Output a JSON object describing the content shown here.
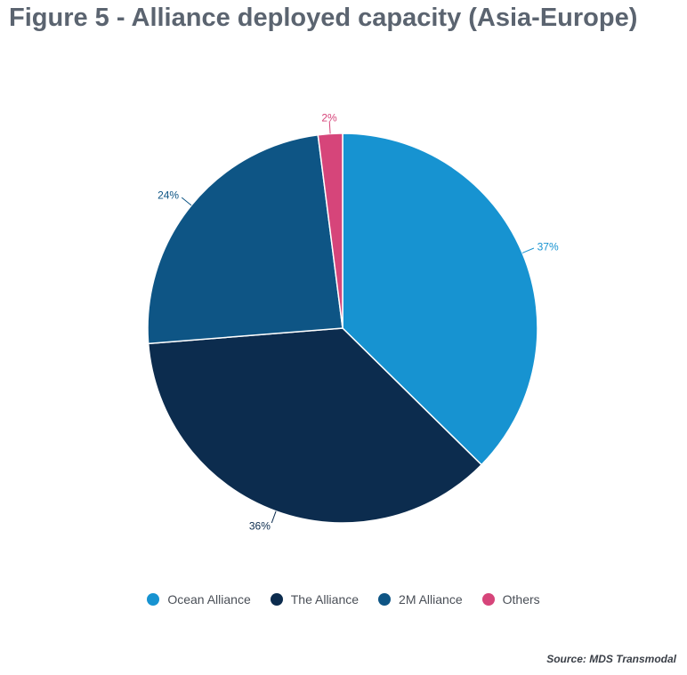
{
  "title": "Figure 5 - Alliance deployed capacity (Asia-Europe)",
  "source": "Source: MDS Transmodal",
  "chart_data": {
    "type": "pie",
    "slices": [
      {
        "name": "Ocean Alliance",
        "value": 37,
        "label": "37%",
        "color": "#1793d1"
      },
      {
        "name": "The Alliance",
        "value": 36,
        "label": "36%",
        "color": "#0c2c4e"
      },
      {
        "name": "2M Alliance",
        "value": 24,
        "label": "24%",
        "color": "#0e5585"
      },
      {
        "name": "Others",
        "value": 2,
        "label": "2%",
        "color": "#d6457a"
      }
    ],
    "legend_position": "bottom"
  },
  "legend": [
    {
      "label": "Ocean Alliance",
      "color": "#1793d1"
    },
    {
      "label": "The Alliance",
      "color": "#0c2c4e"
    },
    {
      "label": "2M Alliance",
      "color": "#0e5585"
    },
    {
      "label": "Others",
      "color": "#d6457a"
    }
  ]
}
